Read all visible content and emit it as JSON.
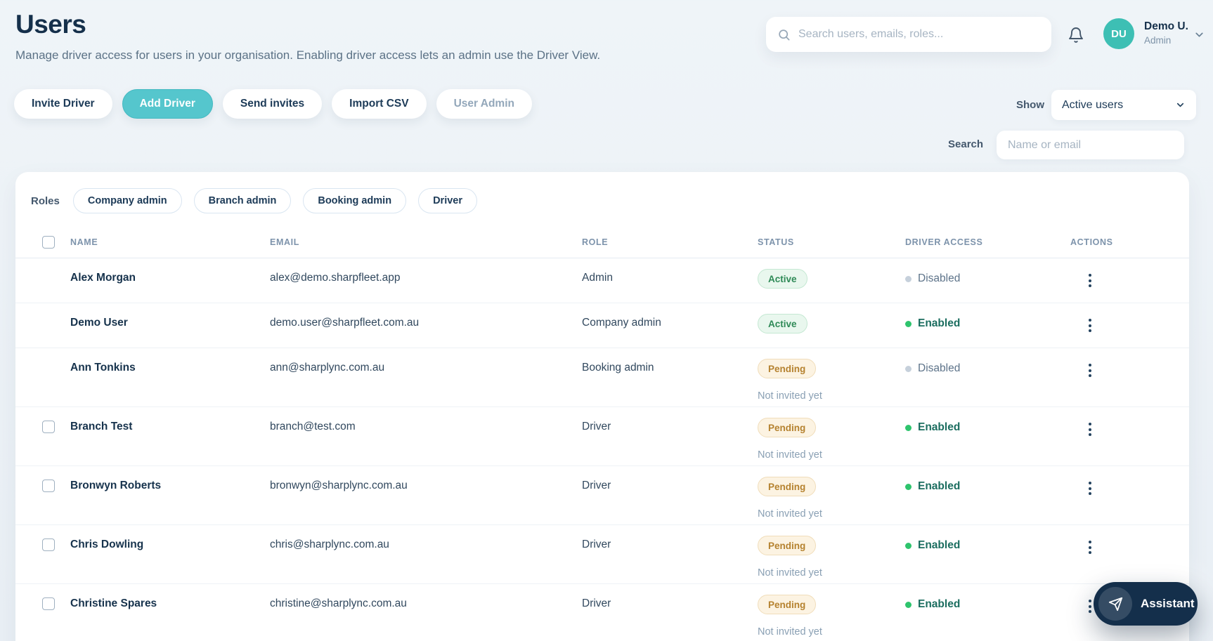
{
  "page": {
    "title": "Users",
    "subtitle": "Manage driver access for users in your organisation. Enabling driver access lets an admin use the Driver View."
  },
  "topbar": {
    "search_placeholder": "Search users, emails, roles...",
    "user": {
      "initials": "DU",
      "name": "Demo U.",
      "role": "Admin"
    }
  },
  "toolbar": {
    "buttons": [
      {
        "label": "Invite Driver",
        "variant": ""
      },
      {
        "label": "Add Driver",
        "variant": "primary"
      },
      {
        "label": "Send invites",
        "variant": ""
      },
      {
        "label": "Import CSV",
        "variant": ""
      },
      {
        "label": "User Admin",
        "variant": "muted"
      }
    ],
    "show_label": "Show",
    "show_value": "Active users",
    "search_label": "Search",
    "search_placeholder": "Name or email"
  },
  "filters": {
    "label": "Roles",
    "chips": [
      "Company admin",
      "Branch admin",
      "Booking admin",
      "Driver"
    ]
  },
  "table": {
    "columns": [
      "NAME",
      "EMAIL",
      "ROLE",
      "STATUS",
      "DRIVER ACCESS",
      "ACTIONS"
    ],
    "rows": [
      {
        "name": "Alex Morgan",
        "email": "alex@demo.sharpfleet.app",
        "role": "Admin",
        "status": "Active",
        "status_note": "",
        "driver_access": "Disabled",
        "has_checkbox": false
      },
      {
        "name": "Demo User",
        "email": "demo.user@sharpfleet.com.au",
        "role": "Company admin",
        "status": "Active",
        "status_note": "",
        "driver_access": "Enabled",
        "has_checkbox": false
      },
      {
        "name": "Ann Tonkins",
        "email": "ann@sharplync.com.au",
        "role": "Booking admin",
        "status": "Pending",
        "status_note": "Not invited yet",
        "driver_access": "Disabled",
        "has_checkbox": false
      },
      {
        "name": "Branch Test",
        "email": "branch@test.com",
        "role": "Driver",
        "status": "Pending",
        "status_note": "Not invited yet",
        "driver_access": "Enabled",
        "has_checkbox": true
      },
      {
        "name": "Bronwyn Roberts",
        "email": "bronwyn@sharplync.com.au",
        "role": "Driver",
        "status": "Pending",
        "status_note": "Not invited yet",
        "driver_access": "Enabled",
        "has_checkbox": true
      },
      {
        "name": "Chris Dowling",
        "email": "chris@sharplync.com.au",
        "role": "Driver",
        "status": "Pending",
        "status_note": "Not invited yet",
        "driver_access": "Enabled",
        "has_checkbox": true
      },
      {
        "name": "Christine Spares",
        "email": "christine@sharplync.com.au",
        "role": "Driver",
        "status": "Pending",
        "status_note": "Not invited yet",
        "driver_access": "Enabled",
        "has_checkbox": true
      }
    ]
  },
  "assistant": {
    "label": "Assistant"
  },
  "colors": {
    "navy": "#15304b",
    "accent": "#55c6cd",
    "avatar": "#3dbfb4",
    "green": "#2f8a57",
    "green-dot": "#2ec46d",
    "orange": "#b5822f",
    "assistant": "#142f4b"
  }
}
